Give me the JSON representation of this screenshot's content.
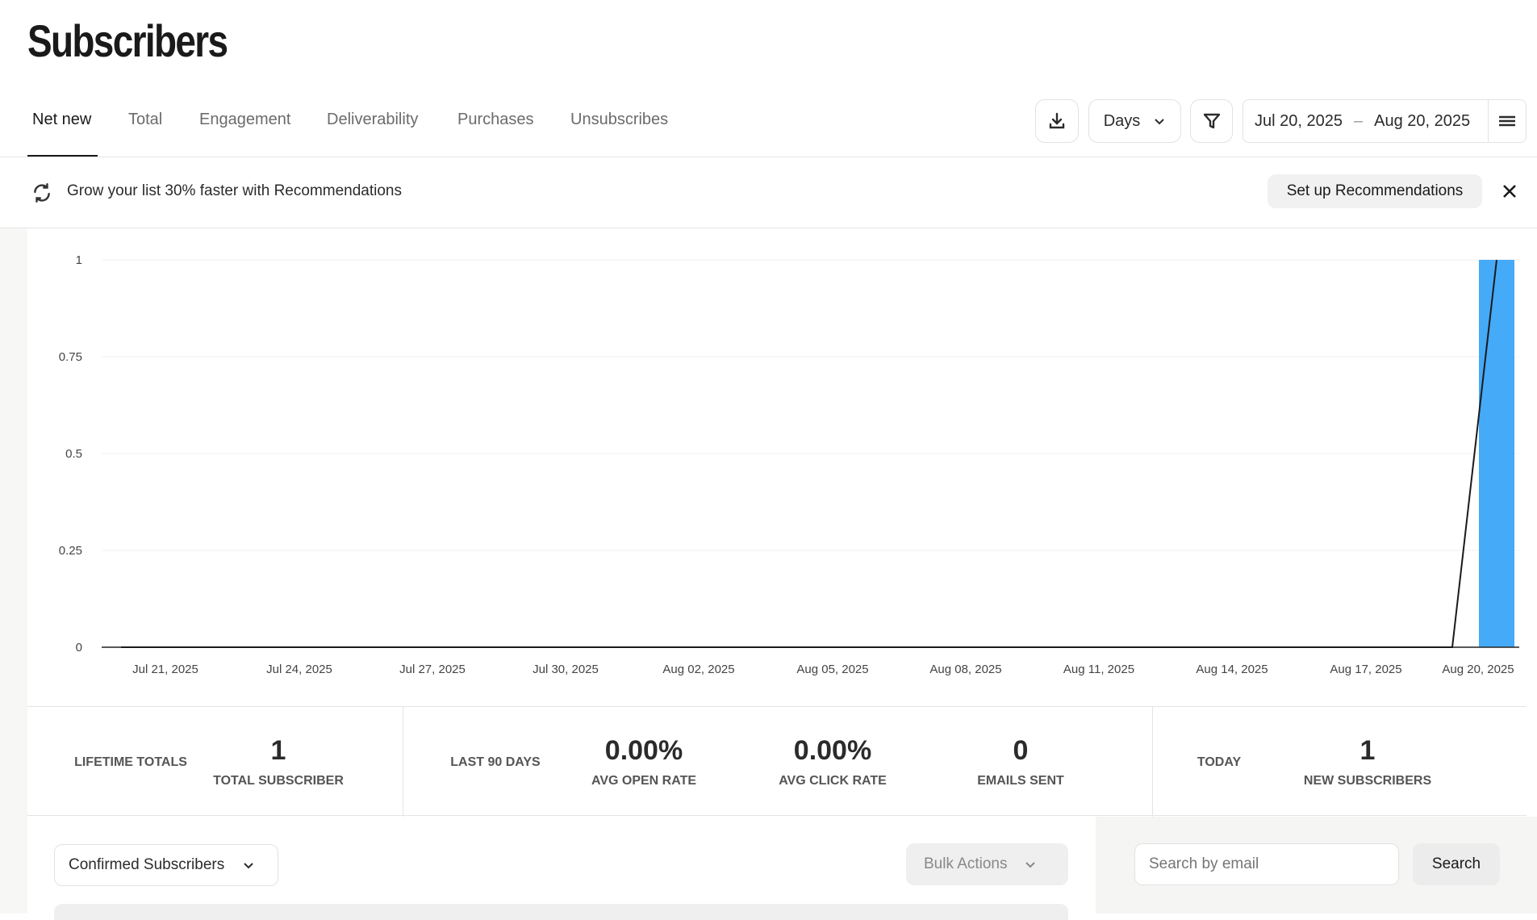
{
  "page": {
    "title": "Subscribers"
  },
  "tabs": [
    {
      "label": "Net new",
      "active": true
    },
    {
      "label": "Total"
    },
    {
      "label": "Engagement"
    },
    {
      "label": "Deliverability"
    },
    {
      "label": "Purchases"
    },
    {
      "label": "Unsubscribes"
    }
  ],
  "toolbar": {
    "interval": "Days",
    "date_start": "Jul 20, 2025",
    "date_sep": "–",
    "date_end": "Aug 20, 2025",
    "icons": [
      "download-icon",
      "chevron-down-icon",
      "filter-icon",
      "menu-icon"
    ]
  },
  "banner": {
    "text": "Grow your list 30% faster with Recommendations",
    "button": "Set up Recommendations"
  },
  "chart_data": {
    "type": "bar",
    "y_ticks": [
      "0",
      "0.25",
      "0.5",
      "0.75",
      "1"
    ],
    "ylim": [
      0,
      1
    ],
    "x_tick_labels": [
      "Jul 21, 2025",
      "Jul 24, 2025",
      "Jul 27, 2025",
      "Jul 30, 2025",
      "Aug 02, 2025",
      "Aug 05, 2025",
      "Aug 08, 2025",
      "Aug 11, 2025",
      "Aug 14, 2025",
      "Aug 17, 2025",
      "Aug 20, 2025"
    ],
    "x_range": [
      "Jul 20, 2025",
      "Aug 20, 2025"
    ],
    "values": [
      0,
      0,
      0,
      0,
      0,
      0,
      0,
      0,
      0,
      0,
      0,
      0,
      0,
      0,
      0,
      0,
      0,
      0,
      0,
      0,
      0,
      0,
      0,
      0,
      0,
      0,
      0,
      0,
      0,
      0,
      0,
      1
    ],
    "bar_color": "#45aaf8",
    "line_color": "#1a1a1a",
    "grid": true
  },
  "stats": {
    "lifetime": {
      "label": "LIFETIME TOTALS",
      "value": "1",
      "sub": "TOTAL SUBSCRIBER"
    },
    "last90": {
      "label": "LAST 90 DAYS",
      "items": [
        {
          "value": "0.00%",
          "sub": "AVG OPEN RATE"
        },
        {
          "value": "0.00%",
          "sub": "AVG CLICK RATE"
        },
        {
          "value": "0",
          "sub": "EMAILS SENT"
        }
      ]
    },
    "today": {
      "label": "TODAY",
      "value": "1",
      "sub": "NEW SUBSCRIBERS"
    }
  },
  "list": {
    "filter": "Confirmed Subscribers",
    "bulk": "Bulk Actions",
    "search_placeholder": "Search by email",
    "search_button": "Search"
  }
}
